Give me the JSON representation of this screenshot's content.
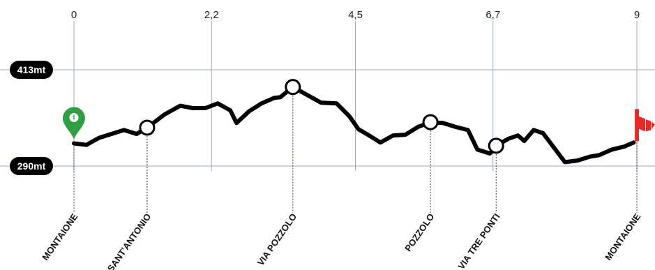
{
  "chart_data": {
    "type": "line",
    "x_ticks": [
      "0",
      "2,2",
      "4,5",
      "6,7",
      "9"
    ],
    "x_tick_values": [
      0,
      2.2,
      4.5,
      6.7,
      9
    ],
    "xlim": [
      0,
      9
    ],
    "ylim": [
      290,
      413
    ],
    "y_labels": [
      {
        "value": 413,
        "label": "413mt"
      },
      {
        "value": 290,
        "label": "290mt"
      }
    ],
    "series": [
      {
        "x": [
          0,
          0.2,
          0.4,
          0.8,
          1.0,
          1.17,
          1.45,
          1.7,
          1.9,
          2.1,
          2.3,
          2.5,
          2.6,
          2.8,
          3.0,
          3.2,
          3.3,
          3.5,
          3.95,
          4.2,
          4.4,
          4.55,
          4.7,
          4.9,
          5.1,
          5.3,
          5.5,
          5.7,
          5.9,
          6.1,
          6.3,
          6.45,
          6.65,
          6.75,
          6.95,
          7.1,
          7.2,
          7.35,
          7.5,
          7.85,
          8.05,
          8.25,
          8.4,
          8.6,
          8.8,
          8.95
        ],
        "y": [
          319,
          317,
          326,
          336,
          331,
          339,
          356,
          367,
          364,
          364,
          370,
          361,
          345,
          360,
          370,
          377,
          378,
          391,
          371,
          370,
          354,
          337,
          330,
          320,
          329,
          330,
          340,
          346,
          345,
          340,
          336,
          311,
          306,
          316,
          325,
          329,
          322,
          336,
          332,
          295,
          297,
          302,
          304,
          311,
          315,
          320
        ]
      }
    ],
    "waypoints": [
      {
        "x": 0,
        "label": "MONTAIONE",
        "marker": "start"
      },
      {
        "x": 1.17,
        "label": "SANT'ANTONIO",
        "marker": "circle"
      },
      {
        "x": 3.5,
        "label": "VIA POZZOLO",
        "marker": "circle"
      },
      {
        "x": 5.7,
        "label": "POZZOLO",
        "marker": "circle"
      },
      {
        "x": 6.75,
        "label": "VIA TRE PONTI",
        "marker": "circle"
      },
      {
        "x": 9,
        "label": "MONTAIONE",
        "marker": "finish"
      }
    ],
    "colors": {
      "line": "#000000",
      "grid": "#9aaec6",
      "start_pin": "#2ea043",
      "finish_flag": "#e52a2a",
      "label_pill": "#000000"
    }
  }
}
